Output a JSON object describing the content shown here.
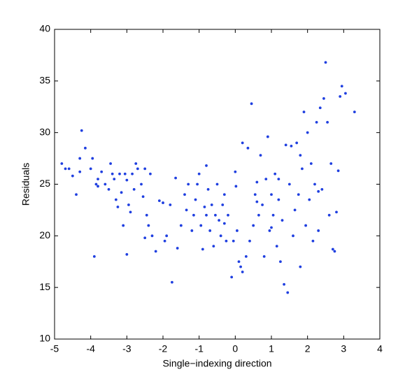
{
  "chart_data": {
    "type": "scatter",
    "x_label": "Single−indexing direction",
    "y_label": "Residuals",
    "xlim": [
      -5,
      4
    ],
    "ylim": [
      10,
      40
    ],
    "xticks": [
      -5,
      -4,
      -3,
      -2,
      -1,
      0,
      1,
      2,
      3,
      4
    ],
    "yticks": [
      10,
      15,
      20,
      25,
      30,
      35,
      40
    ],
    "color": "#1f3fe0",
    "x": [
      -4.8,
      -4.7,
      -4.6,
      -4.5,
      -4.4,
      -4.3,
      -4.3,
      -4.25,
      -4.15,
      -4.0,
      -3.95,
      -3.9,
      -3.85,
      -3.8,
      -3.8,
      -3.7,
      -3.6,
      -3.5,
      -3.45,
      -3.4,
      -3.35,
      -3.3,
      -3.25,
      -3.2,
      -3.15,
      -3.1,
      -3.05,
      -3.0,
      -3.0,
      -2.95,
      -2.9,
      -2.85,
      -2.8,
      -2.75,
      -2.7,
      -2.6,
      -2.55,
      -2.5,
      -2.5,
      -2.45,
      -2.4,
      -2.35,
      -2.3,
      -2.2,
      -2.1,
      -2.0,
      -1.95,
      -1.9,
      -1.8,
      -1.75,
      -1.65,
      -1.6,
      -1.5,
      -1.4,
      -1.35,
      -1.3,
      -1.2,
      -1.15,
      -1.1,
      -1.05,
      -1.0,
      -0.95,
      -0.9,
      -0.85,
      -0.8,
      -0.75,
      -0.7,
      -0.65,
      -0.6,
      -0.55,
      -0.5,
      -0.45,
      -0.4,
      -0.35,
      -0.3,
      -0.25,
      -0.2,
      -0.1,
      -0.05,
      0.0,
      0.02,
      0.05,
      0.1,
      0.15,
      0.2,
      0.2,
      0.3,
      0.35,
      0.4,
      0.45,
      0.5,
      0.55,
      0.6,
      0.65,
      0.7,
      0.75,
      0.8,
      0.85,
      0.9,
      0.95,
      1.0,
      1.05,
      1.1,
      1.15,
      1.2,
      1.25,
      1.3,
      1.35,
      1.4,
      1.45,
      1.5,
      1.55,
      1.6,
      1.65,
      1.7,
      1.75,
      1.8,
      1.85,
      1.9,
      1.95,
      2.0,
      2.05,
      2.1,
      2.15,
      2.2,
      2.25,
      2.3,
      2.35,
      2.4,
      2.45,
      2.5,
      2.55,
      2.6,
      2.65,
      2.7,
      2.75,
      2.8,
      2.85,
      2.9,
      2.95,
      3.05,
      3.3,
      1.2,
      0.6,
      1.8,
      2.3,
      1.0,
      -0.8,
      -0.3
    ],
    "values": [
      27,
      26.5,
      26.5,
      25.8,
      24,
      27.5,
      26.2,
      30.2,
      28.5,
      26.5,
      27.5,
      18,
      25,
      25.5,
      24.8,
      26.2,
      25,
      24.5,
      27,
      26,
      25.5,
      23.5,
      22.8,
      26,
      24.2,
      21,
      26,
      18.2,
      25.4,
      23,
      22.3,
      26,
      24.5,
      27,
      26.5,
      25,
      23.8,
      19.8,
      26.5,
      22,
      21,
      26,
      20,
      18.5,
      23.4,
      23.2,
      19.5,
      20,
      23,
      15.5,
      25.6,
      18.8,
      21,
      24,
      22.5,
      25,
      20.5,
      22,
      23.5,
      25,
      26,
      21,
      18.7,
      22.8,
      26.8,
      24.5,
      20.5,
      23,
      19,
      22,
      25,
      21.5,
      20,
      23,
      21.2,
      19.5,
      22,
      16,
      19.5,
      26.2,
      24.8,
      20.5,
      17.5,
      17,
      16.5,
      29,
      18,
      28.5,
      19.5,
      32.8,
      21,
      24,
      25.2,
      22,
      27.8,
      23,
      18,
      25.5,
      29.6,
      20.5,
      24,
      22,
      26,
      19,
      23.5,
      17.5,
      21.5,
      15.3,
      28.8,
      14.5,
      25,
      28.7,
      20,
      22.5,
      29,
      24,
      17,
      26.5,
      32,
      21,
      30,
      23.5,
      27,
      19.5,
      25,
      31,
      20.5,
      32.4,
      24.5,
      33.3,
      36.8,
      31,
      22,
      27,
      18.7,
      18.5,
      22.3,
      26.3,
      33.5,
      34.5,
      33.8,
      32,
      25.5,
      23.3,
      27.8,
      24.3,
      20.8,
      22,
      24
    ]
  }
}
